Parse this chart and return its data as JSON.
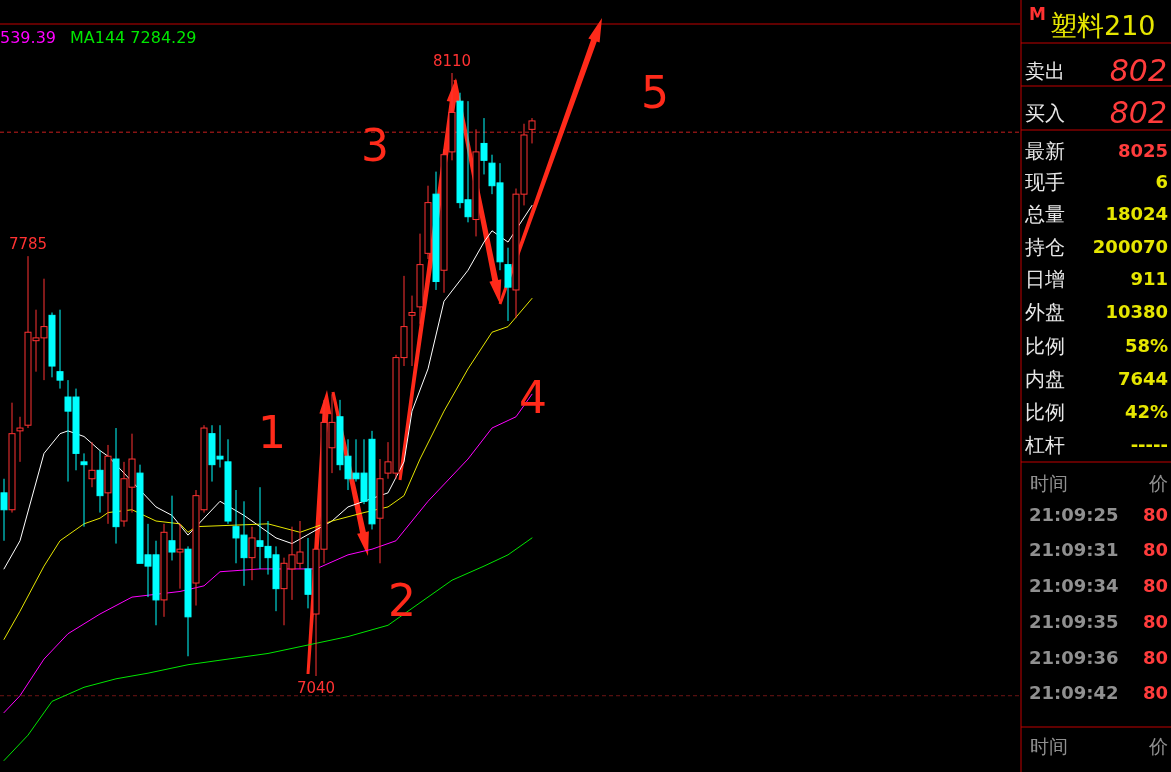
{
  "chart_data": [
    {
      "type": "candlestick",
      "categories": [
        null,
        null,
        null,
        null,
        null,
        null,
        null,
        null,
        null,
        null,
        null,
        null,
        null,
        null,
        null,
        null,
        null,
        null,
        null,
        null,
        null,
        null,
        null,
        null,
        null,
        null,
        null,
        null,
        null,
        null,
        null,
        null,
        null,
        null,
        null,
        null,
        null,
        null,
        null,
        null,
        null,
        null,
        null,
        null,
        null,
        null,
        null,
        null,
        null,
        null,
        null,
        null,
        null,
        null,
        null,
        null,
        null,
        null,
        null,
        null,
        null,
        null,
        null,
        null,
        null,
        null,
        null
      ],
      "ohlc": [
        [
          7365,
          7390,
          7280,
          7335
        ],
        [
          7335,
          7525,
          7330,
          7470
        ],
        [
          7475,
          7500,
          7420,
          7480
        ],
        [
          7485,
          7785,
          7480,
          7650
        ],
        [
          7635,
          7690,
          7580,
          7640
        ],
        [
          7640,
          7745,
          7565,
          7660
        ],
        [
          7680,
          7685,
          7570,
          7590
        ],
        [
          7580,
          7690,
          7550,
          7565
        ],
        [
          7535,
          7565,
          7385,
          7510
        ],
        [
          7535,
          7550,
          7405,
          7435
        ],
        [
          7420,
          7435,
          7305,
          7415
        ],
        [
          7390,
          7455,
          7375,
          7405
        ],
        [
          7405,
          7440,
          7330,
          7360
        ],
        [
          7365,
          7450,
          7310,
          7430
        ],
        [
          7425,
          7480,
          7275,
          7305
        ],
        [
          7315,
          7420,
          7305,
          7390
        ],
        [
          7375,
          7470,
          7330,
          7425
        ],
        [
          7400,
          7415,
          7240,
          7240
        ],
        [
          7255,
          7310,
          7180,
          7235
        ],
        [
          7255,
          7280,
          7130,
          7175
        ],
        [
          7175,
          7310,
          7145,
          7295
        ],
        [
          7280,
          7360,
          7245,
          7260
        ],
        [
          7260,
          7310,
          7195,
          7265
        ],
        [
          7265,
          7270,
          7075,
          7145
        ],
        [
          7205,
          7370,
          7165,
          7360
        ],
        [
          7335,
          7485,
          7330,
          7480
        ],
        [
          7470,
          7485,
          7385,
          7415
        ],
        [
          7430,
          7485,
          7410,
          7425
        ],
        [
          7420,
          7460,
          7310,
          7315
        ],
        [
          7305,
          7370,
          7240,
          7285
        ],
        [
          7290,
          7350,
          7200,
          7250
        ],
        [
          7250,
          7305,
          7210,
          7285
        ],
        [
          7280,
          7375,
          7230,
          7270
        ],
        [
          7270,
          7315,
          7220,
          7250
        ],
        [
          7255,
          7270,
          7155,
          7195
        ],
        [
          7195,
          7250,
          7130,
          7240
        ],
        [
          7230,
          7305,
          7175,
          7255
        ],
        [
          7240,
          7315,
          7230,
          7260
        ],
        [
          7230,
          7285,
          7160,
          7185
        ],
        [
          7150,
          7265,
          7040,
          7265
        ],
        [
          7265,
          7530,
          7240,
          7490
        ],
        [
          7445,
          7540,
          7400,
          7490
        ],
        [
          7500,
          7530,
          7405,
          7415
        ],
        [
          7430,
          7460,
          7370,
          7390
        ],
        [
          7400,
          7460,
          7385,
          7390
        ],
        [
          7400,
          7460,
          7345,
          7350
        ],
        [
          7460,
          7475,
          7300,
          7310
        ],
        [
          7320,
          7425,
          7240,
          7390
        ],
        [
          7400,
          7455,
          7390,
          7420
        ],
        [
          7400,
          7610,
          7390,
          7605
        ],
        [
          7605,
          7750,
          7590,
          7660
        ],
        [
          7680,
          7715,
          7590,
          7685
        ],
        [
          7695,
          7825,
          7665,
          7770
        ],
        [
          7790,
          7910,
          7780,
          7880
        ],
        [
          7895,
          7935,
          7725,
          7740
        ],
        [
          7760,
          7975,
          7720,
          7965
        ],
        [
          7970,
          8110,
          7955,
          8040
        ],
        [
          8060,
          8075,
          7870,
          7880
        ],
        [
          7885,
          8060,
          7845,
          7855
        ],
        [
          7850,
          8010,
          7820,
          7970
        ],
        [
          7985,
          8030,
          7930,
          7955
        ],
        [
          7950,
          7965,
          7895,
          7910
        ],
        [
          7915,
          7950,
          7760,
          7775
        ],
        [
          7770,
          7800,
          7670,
          7730
        ],
        [
          7725,
          7905,
          7675,
          7895
        ],
        [
          7895,
          8020,
          7875,
          8000
        ],
        [
          8010,
          8030,
          7985,
          8025
        ]
      ],
      "colors": [
        "#00ffff",
        "#ff3232",
        "#ff3232",
        "#ff3232",
        "#ff3232",
        "#ff3232",
        "#00ffff",
        "#00ffff",
        "#00ffff",
        "#00ffff",
        "#00ffff",
        "#ff3232",
        "#00ffff",
        "#ff3232",
        "#00ffff",
        "#ff3232",
        "#ff3232",
        "#00ffff",
        "#00ffff",
        "#00ffff",
        "#ff3232",
        "#00ffff",
        "#ff3232",
        "#00ffff",
        "#ff3232",
        "#ff3232",
        "#00ffff",
        "#00ffff",
        "#00ffff",
        "#00ffff",
        "#00ffff",
        "#ff3232",
        "#00ffff",
        "#00ffff",
        "#00ffff",
        "#ff3232",
        "#ff3232",
        "#ff3232",
        "#00ffff",
        "#ff3232",
        "#ff3232",
        "#ff3232",
        "#00ffff",
        "#00ffff",
        "#00ffff",
        "#00ffff",
        "#00ffff",
        "#ff3232",
        "#ff3232",
        "#ff3232",
        "#ff3232",
        "#ff3232",
        "#ff3232",
        "#ff3232",
        "#00ffff",
        "#ff3232",
        "#ff3232",
        "#00ffff",
        "#00ffff",
        "#ff3232",
        "#00ffff",
        "#00ffff",
        "#00ffff",
        "#00ffff",
        "#ff3232",
        "#ff3232",
        "#ff3232"
      ],
      "series": [
        {
          "type": "line",
          "color": "#ffffff",
          "values": [
            7230,
            null,
            7280,
            null,
            null,
            7435,
            null,
            7470,
            7475,
            null,
            7465,
            null,
            7440,
            7430,
            null,
            null,
            null,
            null,
            null,
            7340,
            null,
            7325,
            null,
            7290,
            null,
            null,
            null,
            7350,
            null,
            null,
            7325,
            null,
            null,
            null,
            7285,
            null,
            7275,
            null,
            null,
            null,
            null,
            7315,
            null,
            7340,
            null,
            null,
            null,
            null,
            7365,
            null,
            7420,
            7510,
            null,
            7585,
            null,
            7705,
            null,
            null,
            7760,
            null,
            7810,
            7830,
            null,
            7810,
            null,
            null,
            7875
          ]
        },
        {
          "type": "line",
          "color": "#e6e600",
          "values": [
            7105,
            null,
            7155,
            null,
            null,
            7235,
            null,
            7280,
            null,
            null,
            7310,
            null,
            7320,
            7330,
            null,
            null,
            7335,
            null,
            null,
            7315,
            null,
            null,
            7310,
            7295,
            7305,
            null,
            null,
            null,
            null,
            null,
            null,
            null,
            null,
            7310,
            null,
            null,
            null,
            7295,
            null,
            null,
            null,
            7315,
            null,
            null,
            null,
            7330,
            null,
            null,
            7340,
            null,
            7360,
            null,
            7425,
            null,
            null,
            7510,
            null,
            null,
            7585,
            null,
            null,
            7650,
            null,
            7660,
            null,
            null,
            7710
          ]
        },
        {
          "type": "line",
          "name": "539.39",
          "color": "#ff00ff",
          "values": [
            6975,
            null,
            7005,
            null,
            null,
            7070,
            null,
            null,
            7115,
            null,
            null,
            null,
            7150,
            null,
            null,
            null,
            7180,
            null,
            null,
            null,
            null,
            null,
            7190,
            null,
            null,
            7200,
            null,
            7225,
            null,
            null,
            null,
            null,
            7230,
            null,
            null,
            null,
            null,
            null,
            null,
            7230,
            null,
            null,
            null,
            7255,
            null,
            null,
            7265,
            null,
            null,
            7280,
            null,
            null,
            null,
            7350,
            null,
            null,
            null,
            null,
            7425,
            null,
            null,
            7480,
            null,
            null,
            7500,
            null,
            7540
          ]
        },
        {
          "type": "line",
          "name": "MA144 7284.29",
          "color": "#00e600",
          "values": [
            6890,
            null,
            null,
            6935,
            null,
            null,
            6995,
            null,
            null,
            null,
            7020,
            null,
            null,
            null,
            7035,
            null,
            null,
            null,
            7045,
            null,
            null,
            null,
            null,
            7060,
            null,
            null,
            null,
            null,
            7070,
            null,
            null,
            null,
            null,
            7080,
            null,
            null,
            null,
            null,
            7095,
            null,
            null,
            null,
            null,
            7110,
            null,
            null,
            null,
            null,
            7130,
            null,
            null,
            null,
            7170,
            null,
            null,
            null,
            7210,
            null,
            null,
            null,
            7235,
            null,
            null,
            7255,
            null,
            null,
            7285
          ]
        }
      ],
      "ref_lines": [
        {
          "axis": "y",
          "value": 8005,
          "color": "#c81e1e",
          "line_style": "dashed"
        },
        {
          "axis": "y",
          "value": 7005,
          "color": "#6e1414",
          "line_style": "dashed"
        }
      ],
      "legend": "top left",
      "annotations": [
        {
          "text": "7785",
          "y": 7785
        },
        {
          "text": "8110",
          "y": 8110
        },
        {
          "text": "7040",
          "y": 7040
        },
        "1",
        "2",
        "3",
        "4",
        "5"
      ]
    },
    {
      "type": "other",
      "title": "塑料210",
      "annotations": [
        "M",
        "卖出",
        "802",
        "买入",
        "802",
        "最新",
        "8025",
        "现手",
        "6",
        "总量",
        "18024",
        "持仓",
        "200070",
        "日增",
        "911",
        "外盘",
        "10380",
        "比例",
        "58%",
        "内盘",
        "7644",
        "比例",
        "42%",
        "杠杆",
        "-----",
        "时间",
        "价",
        "21:09:25",
        "80",
        "21:09:31",
        "80",
        "21:09:34",
        "80",
        "21:09:35",
        "80",
        "21:09:36",
        "80",
        "21:09:42",
        "80",
        "时间",
        "价"
      ]
    }
  ]
}
